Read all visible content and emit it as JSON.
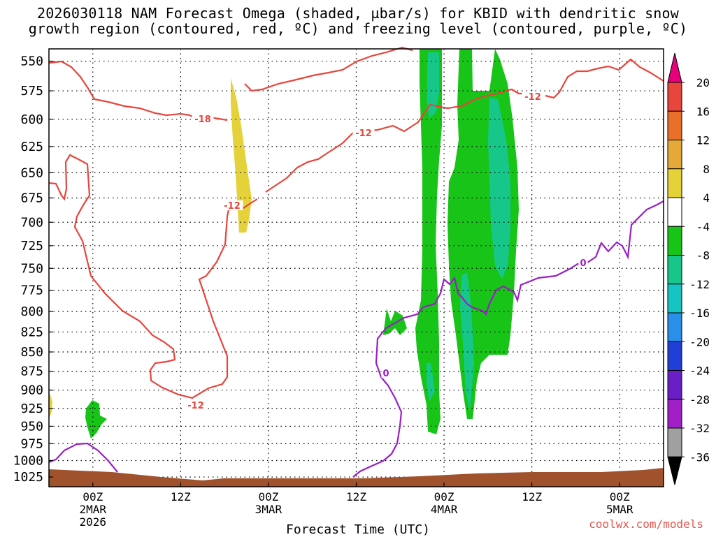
{
  "title": {
    "line1": "2026030118 NAM Forecast Omega (shaded, µbar/s) for KBID with dendritic snow",
    "line2": "growth region (contoured, red, ºC) and freezing level (contoured, purple, ºC)"
  },
  "credit": "coolwx.com/models",
  "colors": {
    "background": "#ffffff",
    "ground": "#a0522d",
    "temp_contour": "#e8453c",
    "freezing_contour": "#9a1fc6",
    "grid": "#000000"
  },
  "chart_data": {
    "type": "heatmap",
    "xlabel": "Forecast Time (UTC)",
    "ylabel": "",
    "y_ticks": [
      "550",
      "575",
      "600",
      "625",
      "650",
      "675",
      "700",
      "725",
      "750",
      "775",
      "800",
      "825",
      "850",
      "875",
      "900",
      "925",
      "950",
      "975",
      "1000",
      "1025"
    ],
    "x_ticks": [
      {
        "l1": "00Z",
        "l2": "2MAR",
        "l3": "2026"
      },
      {
        "l1": "12Z",
        "l2": "",
        "l3": ""
      },
      {
        "l1": "00Z",
        "l2": "3MAR",
        "l3": ""
      },
      {
        "l1": "12Z",
        "l2": "",
        "l3": ""
      },
      {
        "l1": "00Z",
        "l2": "4MAR",
        "l3": ""
      },
      {
        "l1": "12Z",
        "l2": "",
        "l3": ""
      },
      {
        "l1": "00Z",
        "l2": "5MAR",
        "l3": ""
      }
    ],
    "x_tick_hours": [
      6,
      18,
      30,
      42,
      54,
      66,
      78
    ],
    "xlim": [
      0,
      84
    ],
    "ylim_hPa": [
      540,
      1040
    ],
    "colorbar": {
      "labels": [
        "20",
        "16",
        "12",
        "8",
        "4",
        "-4",
        "-8",
        "-12",
        "-16",
        "-20",
        "-24",
        "-28",
        "-32",
        "-36"
      ],
      "colors": [
        "#e6007a",
        "#e8453c",
        "#e8702a",
        "#e5a93a",
        "#e5d23a",
        "#ffffff",
        "#17c417",
        "#17c78a",
        "#17c4c4",
        "#2a8fe8",
        "#1f3fd6",
        "#6a1fc6",
        "#a11fc6",
        "#a0a0a0",
        "#000000"
      ]
    },
    "contour_labels": [
      {
        "text": "-18",
        "color": "temp"
      },
      {
        "text": "-12",
        "color": "temp"
      },
      {
        "text": "-12",
        "color": "temp"
      },
      {
        "text": "-12",
        "color": "temp"
      },
      {
        "text": "-12",
        "color": "temp"
      },
      {
        "text": "0",
        "color": "freezing"
      },
      {
        "text": "0",
        "color": "freezing"
      }
    ]
  }
}
